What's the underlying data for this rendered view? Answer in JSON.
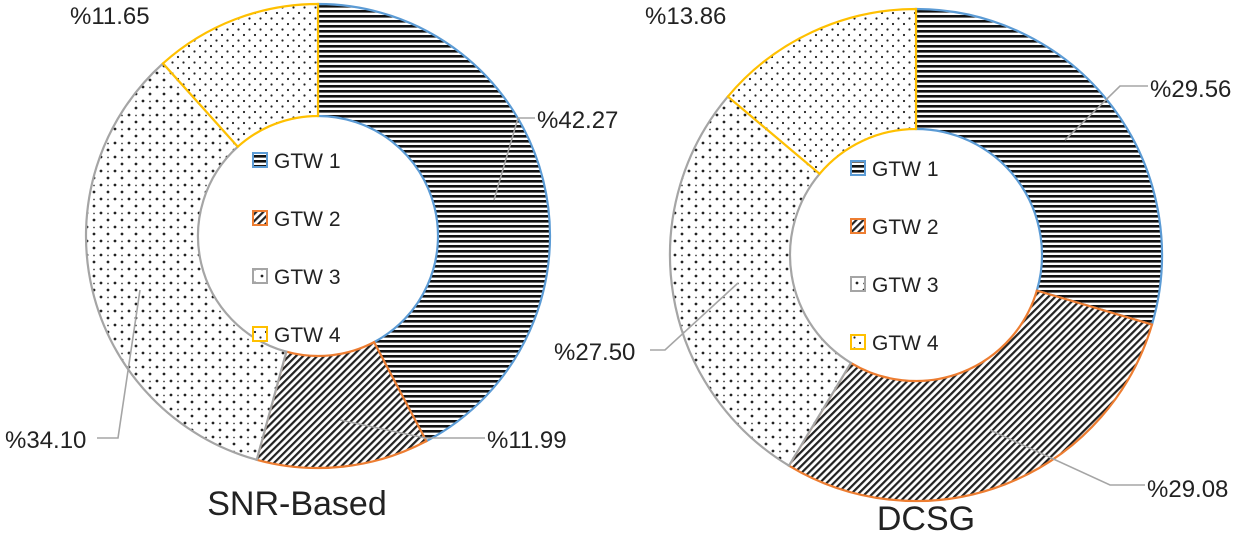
{
  "colors": {
    "GTW 1": "#5b9bd5",
    "GTW 2": "#ed7d31",
    "GTW 3": "#a5a5a5",
    "GTW 4": "#ffc000"
  },
  "chart_data": [
    {
      "type": "pie",
      "subtype": "donut",
      "title": "SNR-Based",
      "categories": [
        "GTW 1",
        "GTW 2",
        "GTW 3",
        "GTW 4"
      ],
      "values": [
        42.27,
        11.99,
        34.1,
        11.65
      ],
      "data_labels": [
        "%42.27",
        "%11.99",
        "%34.10",
        "%11.65"
      ],
      "patterns": [
        "horizontal-lines",
        "diagonal-hatch",
        "sparse-dots",
        "fine-dots"
      ],
      "legend": "center"
    },
    {
      "type": "pie",
      "subtype": "donut",
      "title": "DCSG",
      "categories": [
        "GTW 1",
        "GTW 2",
        "GTW 3",
        "GTW 4"
      ],
      "values": [
        29.56,
        29.08,
        27.5,
        13.86
      ],
      "data_labels": [
        "%29.56",
        "%29.08",
        "%27.50",
        "%13.86"
      ],
      "patterns": [
        "horizontal-lines",
        "diagonal-hatch",
        "sparse-dots",
        "fine-dots"
      ],
      "legend": "center"
    }
  ]
}
